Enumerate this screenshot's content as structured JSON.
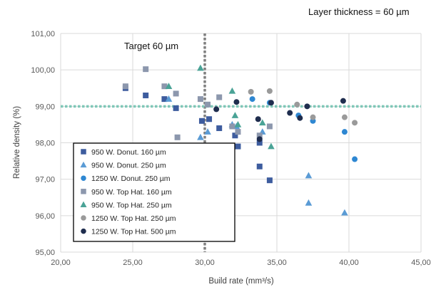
{
  "corner_note": "Layer thickness = 60 µm",
  "target_label": "Target 60 µm",
  "chart_data": {
    "type": "scatter",
    "title": "",
    "xlabel": "Build rate (mm³/s)",
    "ylabel": "Relative density (%)",
    "xlim": [
      20,
      45
    ],
    "ylim": [
      95,
      101
    ],
    "x_ticks": [
      20,
      25,
      30,
      35,
      40,
      45
    ],
    "y_ticks": [
      95,
      96,
      97,
      98,
      99,
      100,
      101
    ],
    "x_tick_labels": [
      "20,00",
      "25,00",
      "30,00",
      "35,00",
      "40,00",
      "45,00"
    ],
    "y_tick_labels": [
      "95,00",
      "96,00",
      "97,00",
      "98,00",
      "99,00",
      "100,00",
      "101,00"
    ],
    "grid": true,
    "legend_position": "bottom-left",
    "reference_lines": [
      {
        "orientation": "vertical",
        "value": 30,
        "label": "Target 60 µm",
        "color": "#7f7f7f"
      },
      {
        "orientation": "horizontal",
        "value": 99,
        "color": "#7fc7b7"
      }
    ],
    "series": [
      {
        "name": "950 W. Donut. 160 µm",
        "marker": "square",
        "color": "#3d5c9e",
        "x": [
          24.5,
          25.9,
          27.2,
          28.0,
          29.8,
          30.3,
          31.0,
          32.1,
          32.3,
          33.8,
          33.8,
          34.5
        ],
        "y": [
          99.5,
          99.3,
          99.2,
          98.95,
          98.6,
          98.65,
          98.4,
          98.2,
          97.9,
          98.0,
          97.35,
          96.97
        ]
      },
      {
        "name": "950 W. Donut. 250 µm",
        "marker": "triangle",
        "color": "#5a9bd5",
        "x": [
          27.5,
          29.7,
          30.2,
          31.9,
          32.2,
          34.0,
          37.2,
          37.2,
          39.7
        ],
        "y": [
          99.2,
          98.15,
          98.3,
          98.5,
          98.45,
          98.3,
          97.1,
          96.35,
          96.08
        ]
      },
      {
        "name": "1250 W. Donut. 250 µm",
        "marker": "circle",
        "color": "#2e87d2",
        "x": [
          33.3,
          34.5,
          36.5,
          37.5,
          39.7,
          40.4
        ],
        "y": [
          99.2,
          99.1,
          98.75,
          98.6,
          98.3,
          97.55
        ]
      },
      {
        "name": "950 W. Top Hat. 160 µm",
        "marker": "square",
        "color": "#8c97ad",
        "x": [
          24.5,
          25.9,
          27.2,
          28.0,
          28.1,
          29.7,
          30.2,
          31.0,
          31.9,
          32.3,
          33.8,
          34.5
        ],
        "y": [
          99.55,
          100.02,
          99.55,
          99.35,
          98.15,
          99.2,
          99.05,
          99.25,
          98.45,
          98.3,
          98.2,
          98.45
        ]
      },
      {
        "name": "950 W. Top Hat. 250 µm",
        "marker": "triangle",
        "color": "#4aa396",
        "x": [
          27.5,
          29.7,
          31.9,
          32.1,
          32.3,
          34.0,
          34.6
        ],
        "y": [
          99.55,
          100.05,
          99.42,
          98.75,
          98.5,
          98.55,
          97.9
        ]
      },
      {
        "name": "1250 W. Top Hat. 250 µm",
        "marker": "circle",
        "color": "#9a9a9a",
        "x": [
          33.2,
          34.5,
          36.4,
          37.5,
          39.7,
          40.4
        ],
        "y": [
          99.4,
          99.42,
          99.05,
          98.7,
          98.7,
          98.55
        ]
      },
      {
        "name": "1250 W. Top Hat. 500 µm",
        "marker": "circle",
        "color": "#1f2d4e",
        "x": [
          30.8,
          32.2,
          33.7,
          33.8,
          34.6,
          35.9,
          36.6,
          37.1,
          39.6
        ],
        "y": [
          98.92,
          99.12,
          98.65,
          98.1,
          99.1,
          98.82,
          98.68,
          99.0,
          99.15
        ]
      }
    ]
  }
}
